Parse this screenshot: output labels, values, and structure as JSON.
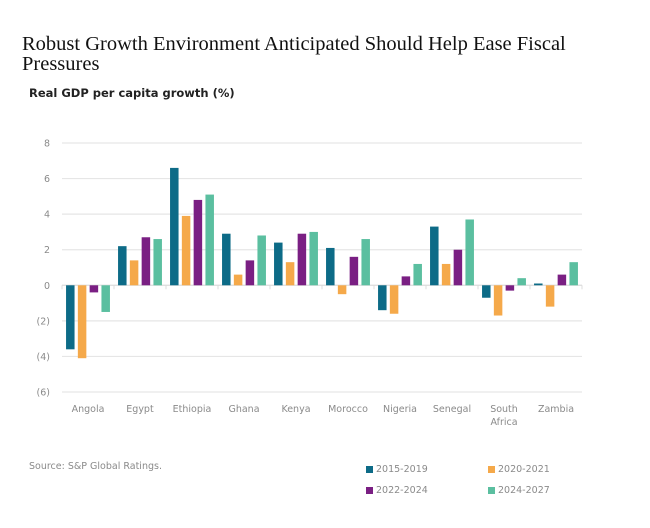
{
  "chart_data": {
    "type": "bar",
    "title": "Robust Growth Environment Anticipated Should Help Ease Fiscal Pressures",
    "subtitle": "Real GDP per capita growth (%)",
    "xlabel": "",
    "ylabel": "Real GDP per capita growth (%)",
    "ylim": [
      -6,
      8
    ],
    "yticks": [
      8,
      6,
      4,
      2,
      0,
      -2,
      -4,
      -6
    ],
    "ytick_labels": [
      "8",
      "6",
      "4",
      "2",
      "0",
      "(2)",
      "(4)",
      "(6)"
    ],
    "grid": true,
    "legend_position": "bottom-right",
    "categories": [
      "Angola",
      "Egypt",
      "Ethiopia",
      "Ghana",
      "Kenya",
      "Morocco",
      "Nigeria",
      "Senegal",
      "South Africa",
      "Zambia"
    ],
    "category_lines": [
      [
        "Angola"
      ],
      [
        "Egypt"
      ],
      [
        "Ethiopia"
      ],
      [
        "Ghana"
      ],
      [
        "Kenya"
      ],
      [
        "Morocco"
      ],
      [
        "Nigeria"
      ],
      [
        "Senegal"
      ],
      [
        "South",
        "Africa"
      ],
      [
        "Zambia"
      ]
    ],
    "series": [
      {
        "name": "2015-2019",
        "color": "#0d6b87",
        "values": [
          -3.6,
          2.2,
          6.6,
          2.9,
          2.4,
          2.1,
          -1.4,
          3.3,
          -0.7,
          0.1
        ]
      },
      {
        "name": "2020-2021",
        "color": "#f5a94a",
        "values": [
          -4.1,
          1.4,
          3.9,
          0.6,
          1.3,
          -0.5,
          -1.6,
          1.2,
          -1.7,
          -1.2
        ]
      },
      {
        "name": "2022-2024",
        "color": "#7a1f83",
        "values": [
          -0.4,
          2.7,
          4.8,
          1.4,
          2.9,
          1.6,
          0.5,
          2.0,
          -0.3,
          0.6
        ]
      },
      {
        "name": "2024-2027",
        "color": "#5bbfa0",
        "values": [
          -1.5,
          2.6,
          5.1,
          2.8,
          3.0,
          2.6,
          1.2,
          3.7,
          0.4,
          1.3
        ]
      }
    ],
    "source": "Source: S&P Global Ratings."
  }
}
